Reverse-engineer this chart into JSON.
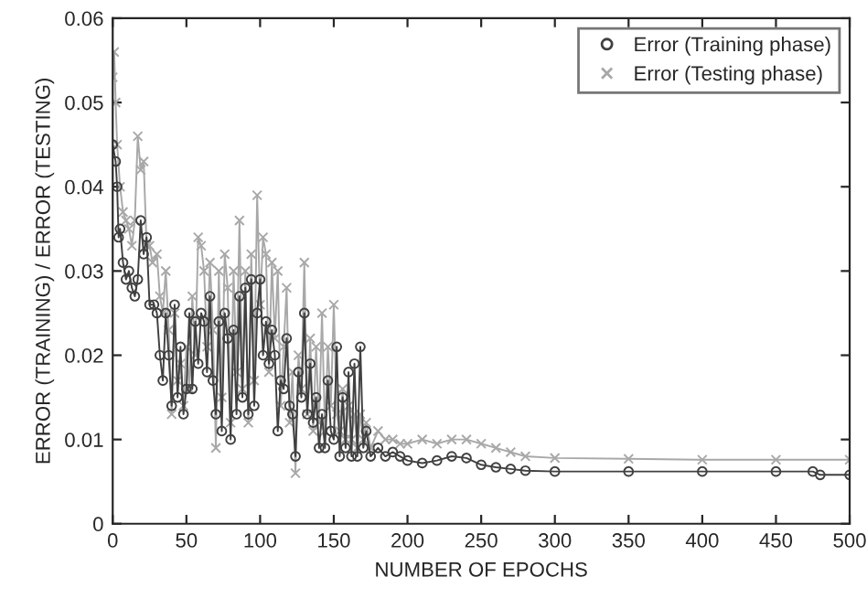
{
  "chart_data": {
    "type": "line",
    "xlabel": "NUMBER OF EPOCHS",
    "ylabel": "ERROR (TRAINING) / ERROR (TESTING)",
    "xlim": [
      0,
      500
    ],
    "xticks": [
      0,
      50,
      100,
      150,
      200,
      250,
      300,
      350,
      400,
      450,
      500
    ],
    "ylim": [
      0,
      0.06
    ],
    "yticks": [
      0,
      0.01,
      0.02,
      0.03,
      0.04,
      0.05,
      0.06
    ],
    "grid": false,
    "legend": "top right",
    "line_style": "solid",
    "series": [
      {
        "name": "Error (Training phase)",
        "color": "#404040",
        "marker": "circle",
        "x": [
          0,
          2,
          3,
          4,
          5,
          7,
          9,
          11,
          13,
          15,
          17,
          19,
          21,
          23,
          25,
          28,
          30,
          32,
          34,
          36,
          38,
          40,
          42,
          44,
          46,
          48,
          50,
          52,
          54,
          56,
          58,
          60,
          62,
          64,
          66,
          68,
          70,
          72,
          74,
          76,
          78,
          80,
          82,
          84,
          86,
          88,
          90,
          92,
          94,
          96,
          98,
          100,
          102,
          104,
          106,
          108,
          110,
          112,
          114,
          116,
          118,
          120,
          122,
          124,
          126,
          128,
          130,
          132,
          134,
          136,
          138,
          140,
          142,
          144,
          146,
          148,
          150,
          152,
          154,
          156,
          158,
          160,
          162,
          164,
          166,
          168,
          170,
          172,
          175,
          180,
          185,
          190,
          195,
          200,
          210,
          220,
          230,
          240,
          250,
          260,
          270,
          280,
          300,
          350,
          400,
          450,
          475,
          480,
          500
        ],
        "values": [
          0.045,
          0.043,
          0.04,
          0.034,
          0.035,
          0.031,
          0.029,
          0.03,
          0.028,
          0.027,
          0.029,
          0.036,
          0.032,
          0.034,
          0.026,
          0.026,
          0.025,
          0.02,
          0.017,
          0.025,
          0.02,
          0.014,
          0.026,
          0.015,
          0.021,
          0.013,
          0.016,
          0.025,
          0.016,
          0.024,
          0.019,
          0.025,
          0.024,
          0.018,
          0.027,
          0.017,
          0.013,
          0.024,
          0.011,
          0.025,
          0.022,
          0.01,
          0.023,
          0.013,
          0.027,
          0.015,
          0.028,
          0.013,
          0.029,
          0.014,
          0.025,
          0.029,
          0.02,
          0.024,
          0.019,
          0.023,
          0.02,
          0.011,
          0.017,
          0.016,
          0.022,
          0.014,
          0.013,
          0.008,
          0.018,
          0.015,
          0.025,
          0.013,
          0.019,
          0.012,
          0.015,
          0.009,
          0.013,
          0.009,
          0.017,
          0.011,
          0.01,
          0.021,
          0.008,
          0.015,
          0.009,
          0.018,
          0.008,
          0.019,
          0.008,
          0.021,
          0.009,
          0.011,
          0.008,
          0.009,
          0.008,
          0.0085,
          0.008,
          0.0075,
          0.0072,
          0.0075,
          0.008,
          0.0078,
          0.007,
          0.0067,
          0.0065,
          0.0063,
          0.0062,
          0.0062,
          0.0062,
          0.0062,
          0.0062,
          0.0058,
          0.0058
        ]
      },
      {
        "name": "Error (Testing phase)",
        "color": "#a8a8a8",
        "marker": "cross",
        "x": [
          0,
          1,
          2,
          3,
          5,
          7,
          9,
          11,
          13,
          15,
          17,
          19,
          21,
          23,
          25,
          27,
          30,
          32,
          34,
          36,
          38,
          40,
          42,
          44,
          46,
          48,
          50,
          52,
          54,
          56,
          58,
          60,
          62,
          64,
          66,
          68,
          70,
          72,
          74,
          76,
          78,
          80,
          82,
          84,
          86,
          88,
          90,
          92,
          94,
          96,
          98,
          100,
          102,
          104,
          106,
          108,
          110,
          112,
          114,
          116,
          118,
          120,
          122,
          124,
          126,
          128,
          130,
          132,
          134,
          136,
          138,
          140,
          142,
          144,
          146,
          148,
          150,
          152,
          154,
          156,
          158,
          160,
          162,
          164,
          166,
          168,
          170,
          172,
          175,
          180,
          185,
          190,
          195,
          200,
          210,
          220,
          230,
          240,
          250,
          260,
          270,
          280,
          300,
          350,
          400,
          450,
          500
        ],
        "values": [
          0.053,
          0.056,
          0.05,
          0.045,
          0.04,
          0.037,
          0.036,
          0.035,
          0.033,
          0.036,
          0.046,
          0.042,
          0.043,
          0.033,
          0.033,
          0.031,
          0.032,
          0.027,
          0.025,
          0.03,
          0.023,
          0.013,
          0.025,
          0.017,
          0.019,
          0.014,
          0.021,
          0.016,
          0.027,
          0.02,
          0.034,
          0.033,
          0.03,
          0.021,
          0.031,
          0.023,
          0.009,
          0.03,
          0.015,
          0.032,
          0.028,
          0.012,
          0.03,
          0.018,
          0.036,
          0.016,
          0.03,
          0.012,
          0.032,
          0.017,
          0.039,
          0.026,
          0.034,
          0.032,
          0.018,
          0.031,
          0.022,
          0.03,
          0.014,
          0.021,
          0.028,
          0.012,
          0.018,
          0.006,
          0.02,
          0.016,
          0.031,
          0.013,
          0.022,
          0.011,
          0.021,
          0.012,
          0.025,
          0.011,
          0.021,
          0.014,
          0.026,
          0.013,
          0.011,
          0.016,
          0.01,
          0.014,
          0.01,
          0.013,
          0.009,
          0.013,
          0.01,
          0.012,
          0.009,
          0.011,
          0.01,
          0.01,
          0.0095,
          0.0095,
          0.01,
          0.0095,
          0.01,
          0.01,
          0.0095,
          0.009,
          0.0085,
          0.008,
          0.0078,
          0.0077,
          0.0076,
          0.0076,
          0.0076
        ]
      }
    ]
  }
}
